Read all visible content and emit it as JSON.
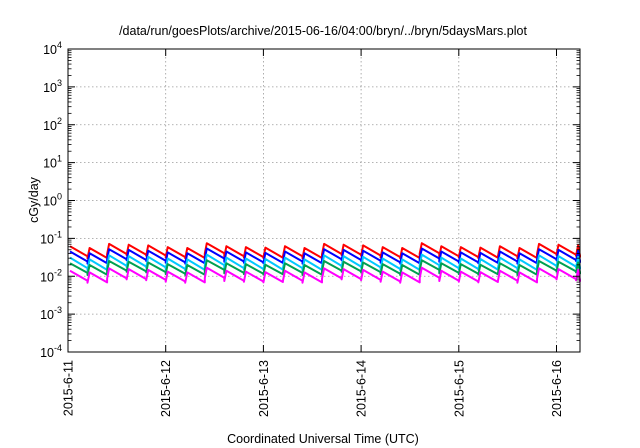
{
  "chart_data": {
    "type": "line",
    "title": "/data/run/goesPlots/archive/2015-06-16/04:00/bryn/../bryn/5daysMars.plot",
    "xlabel": "Coordinated Universal Time (UTC)",
    "ylabel": "cGy/day",
    "y_scale": "log",
    "ylim": [
      0.0001,
      10000
    ],
    "xlim": [
      "2015-06-11T00:00",
      "2015-06-16T04:00"
    ],
    "grid": true,
    "legend": "none",
    "x_tick_labels": [
      "2015-6-11",
      "2015-6-12",
      "2015-6-13",
      "2015-6-14",
      "2015-6-15",
      "2015-6-16"
    ],
    "y_ticks": [
      {
        "base": "10",
        "exp": "-4"
      },
      {
        "base": "10",
        "exp": "-3"
      },
      {
        "base": "10",
        "exp": "-2"
      },
      {
        "base": "10",
        "exp": "-1"
      },
      {
        "base": "10",
        "exp": "0"
      },
      {
        "base": "10",
        "exp": "1"
      },
      {
        "base": "10",
        "exp": "2"
      },
      {
        "base": "10",
        "exp": "3"
      },
      {
        "base": "10",
        "exp": "4"
      }
    ],
    "series": [
      {
        "color": "#ff0000",
        "peak": 0.062,
        "trough": 0.033
      },
      {
        "color": "#0000ff",
        "peak": 0.045,
        "trough": 0.024
      },
      {
        "color": "#00c8ff",
        "peak": 0.031,
        "trough": 0.016
      },
      {
        "color": "#00a050",
        "peak": 0.022,
        "trough": 0.012
      },
      {
        "color": "#ff00ff",
        "peak": 0.014,
        "trough": 0.0075
      }
    ],
    "cycle": {
      "period_hours": 4.8,
      "description": "sawtooth: sharp rise to peak then decay"
    },
    "daily_modulation": [
      1.0,
      0.9,
      1.15,
      1.1,
      1.05,
      0.95,
      0.9,
      1.2,
      1.0,
      0.95,
      0.92
    ]
  }
}
